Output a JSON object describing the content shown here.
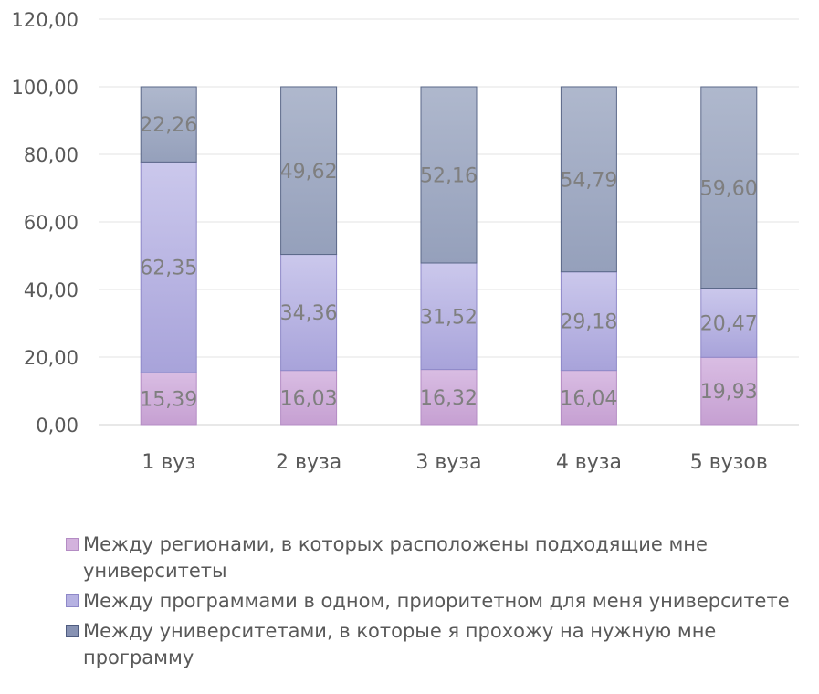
{
  "chart_data": {
    "type": "bar",
    "stacked": true,
    "categories": [
      "1 вуз",
      "2 вуза",
      "3 вуза",
      "4 вуза",
      "5 вузов"
    ],
    "series": [
      {
        "name": "Между регионами, в которых расположены подходящие мне университеты",
        "values": [
          15.39,
          16.03,
          16.32,
          16.04,
          19.93
        ],
        "labels": [
          "15,39",
          "16,03",
          "16,32",
          "16,04",
          "19,93"
        ],
        "color": "#d6b5df"
      },
      {
        "name": "Между программами в одном, приоритетном для меня университете",
        "values": [
          62.35,
          34.36,
          31.52,
          29.18,
          20.47
        ],
        "labels": [
          "62,35",
          "34,36",
          "31,52",
          "29,18",
          "20,47"
        ],
        "color": "#b9b6e0"
      },
      {
        "name": "Между университетами, в которые я прохожу на нужную мне программу",
        "values": [
          22.26,
          49.62,
          52.16,
          54.79,
          59.6
        ],
        "labels": [
          "22,26",
          "49,62",
          "52,16",
          "54,79",
          "59,60"
        ],
        "color": "#a6b0c8"
      }
    ],
    "yticks": [
      "0,00",
      "20,00",
      "40,00",
      "60,00",
      "80,00",
      "100,00",
      "120,00"
    ],
    "ylim": [
      0,
      120
    ],
    "grid": true,
    "legend_position": "bottom"
  },
  "legend": {
    "items": [
      {
        "label": "Между регионами, в которых расположены подходящие мне университеты",
        "color": "#d6b5df"
      },
      {
        "label": "Между программами в одном, приоритетном для меня университете",
        "color": "#b9b6e0"
      },
      {
        "label": "Между университетами, в которые я прохожу на нужную мне программу",
        "color": "#a6b0c8"
      }
    ]
  }
}
